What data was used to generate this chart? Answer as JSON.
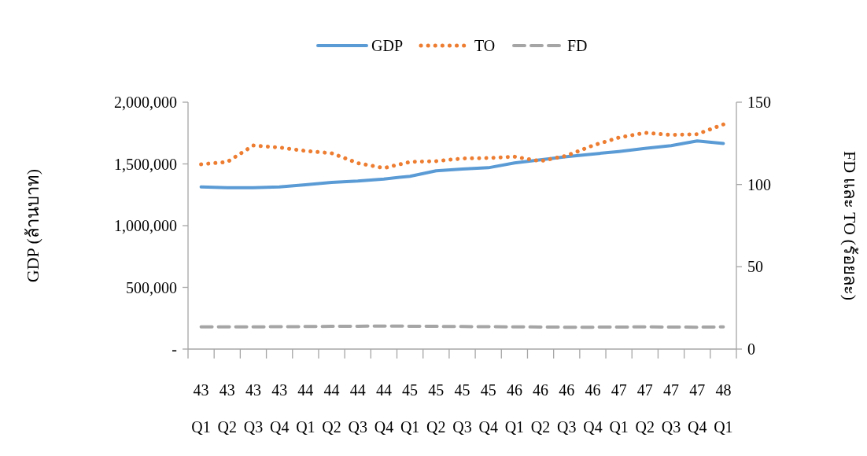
{
  "chart_data": {
    "type": "line",
    "ylabel": "GDP (ล้านบาท)",
    "y2label": "FD และ TO (ร้อยละ)",
    "categories": [
      "43\nQ1",
      "43\nQ2",
      "43\nQ3",
      "43\nQ4",
      "44\nQ1",
      "44\nQ2",
      "44\nQ3",
      "44\nQ4",
      "45\nQ1",
      "45\nQ2",
      "45\nQ3",
      "45\nQ4",
      "46\nQ1",
      "46\nQ2",
      "46\nQ3",
      "46\nQ4",
      "47\nQ1",
      "47\nQ2",
      "47\nQ3",
      "47\nQ4",
      "48\nQ1"
    ],
    "series": [
      {
        "name": "GDP",
        "color": "#5b9bd5",
        "line_style": "solid",
        "values": [
          1314000,
          1308000,
          1308000,
          1314000,
          1331000,
          1350000,
          1361000,
          1378000,
          1400000,
          1444000,
          1458000,
          1469000,
          1508000,
          1533000,
          1559000,
          1580000,
          1601000,
          1626000,
          1648000,
          1686000,
          1665000
        ]
      },
      {
        "name": "TO",
        "color": "#ed7d31",
        "line_style": "dotted",
        "axis": "y2",
        "values": [
          112.3,
          113.7,
          123.7,
          122.5,
          120.4,
          119,
          113,
          110,
          113.7,
          114.2,
          115.8,
          116.1,
          116.9,
          114.2,
          117.5,
          123.7,
          128.5,
          131.4,
          130.1,
          130.6,
          136.5
        ]
      },
      {
        "name": "FD",
        "color": "#a5a5a5",
        "line_style": "dashed",
        "axis": "y2",
        "values": [
          13.5,
          13.5,
          13.5,
          13.6,
          13.7,
          13.8,
          13.9,
          14,
          13.9,
          13.8,
          13.7,
          13.6,
          13.5,
          13.4,
          13.3,
          13.3,
          13.4,
          13.5,
          13.4,
          13.3,
          13.5
        ]
      }
    ],
    "ylim": [
      0,
      2000000
    ],
    "yticks": [
      {
        "value": 0,
        "label": "-"
      },
      {
        "value": 500000,
        "label": "500,000"
      },
      {
        "value": 1000000,
        "label": "1,000,000"
      },
      {
        "value": 1500000,
        "label": "1,500,000"
      },
      {
        "value": 2000000,
        "label": "2,000,000"
      }
    ],
    "y2lim": [
      0,
      150
    ],
    "y2ticks": [
      0,
      50,
      100,
      150
    ],
    "legend": "top",
    "grid": false
  }
}
